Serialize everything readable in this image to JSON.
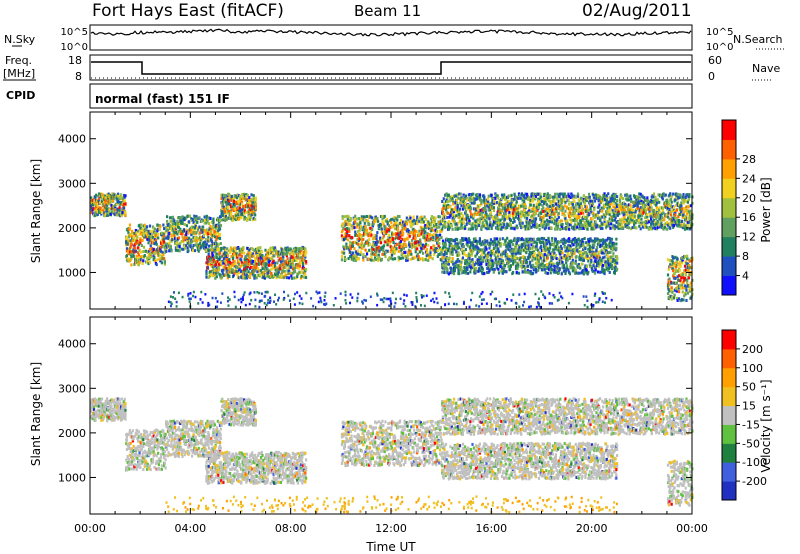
{
  "header": {
    "station": "Fort Hays East (fitACF)",
    "beam": "Beam 11",
    "date": "02/Aug/2011"
  },
  "top_panels": {
    "nsky_label": "N.Sky",
    "nsky_ticks": [
      "10^5",
      "10^0"
    ],
    "nsearch_label": "N.Search",
    "nsearch_ticks": [
      "10^5",
      "10^0"
    ],
    "freq_label": "Freq.",
    "freq_unit": "[MHz]",
    "freq_ticks": [
      "18",
      "8"
    ],
    "nave_label": "Nave",
    "nave_ticks": [
      "60",
      "0"
    ],
    "cpid_label": "CPID",
    "cpid_value": "normal (fast) 151 IF"
  },
  "chart_data": [
    {
      "type": "heatmap",
      "name": "power-panel",
      "ylabel": "Slant Range [km]",
      "xlabel": "",
      "xlim": [
        0,
        24
      ],
      "ylim": [
        180,
        4600
      ],
      "yticks": [
        "1000",
        "2000",
        "3000",
        "4000"
      ],
      "ytick_values": [
        1000,
        2000,
        3000,
        4000
      ],
      "colorbar": {
        "label": "Power [dB]",
        "ticks": [
          "4",
          "8",
          "12",
          "16",
          "20",
          "24",
          "28"
        ],
        "colors": [
          "#1010ff",
          "#2050c0",
          "#208060",
          "#60a060",
          "#a0c040",
          "#f0d020",
          "#ffa000",
          "#ff6000",
          "#ff0000"
        ]
      },
      "echo_regions": [
        {
          "t": [
            0.0,
            1.4
          ],
          "range": [
            2300,
            2800
          ],
          "level": "strong"
        },
        {
          "t": [
            1.4,
            3.0
          ],
          "range": [
            1200,
            2100
          ],
          "level": "strong"
        },
        {
          "t": [
            3.0,
            5.2
          ],
          "range": [
            1500,
            2300
          ],
          "level": "medium"
        },
        {
          "t": [
            5.2,
            6.6
          ],
          "range": [
            2200,
            2800
          ],
          "level": "strong"
        },
        {
          "t": [
            4.6,
            8.6
          ],
          "range": [
            900,
            1600
          ],
          "level": "strong"
        },
        {
          "t": [
            10.0,
            14.0
          ],
          "range": [
            1300,
            2300
          ],
          "level": "strong"
        },
        {
          "t": [
            14.0,
            24.0
          ],
          "range": [
            2000,
            2800
          ],
          "level": "medium"
        },
        {
          "t": [
            14.0,
            21.0
          ],
          "range": [
            1000,
            1800
          ],
          "level": "weak"
        },
        {
          "t": [
            23.0,
            24.0
          ],
          "range": [
            400,
            1400
          ],
          "level": "strong"
        }
      ]
    },
    {
      "type": "heatmap",
      "name": "velocity-panel",
      "ylabel": "Slant Range [km]",
      "xlabel": "Time UT",
      "xlim": [
        0,
        24
      ],
      "ylim": [
        180,
        4600
      ],
      "yticks": [
        "1000",
        "2000",
        "3000",
        "4000"
      ],
      "ytick_values": [
        1000,
        2000,
        3000,
        4000
      ],
      "xticks": [
        "00:00",
        "04:00",
        "08:00",
        "12:00",
        "16:00",
        "20:00",
        "00:00"
      ],
      "xtick_values": [
        0,
        4,
        8,
        12,
        16,
        20,
        24
      ],
      "colorbar": {
        "label": "Velocity [m s⁻¹]",
        "ticks": [
          "200",
          "100",
          "50",
          "15",
          "-15",
          "-50",
          "-100",
          "-200"
        ],
        "colors": [
          "#2030c0",
          "#4060e0",
          "#208040",
          "#60c040",
          "#c0c0c0",
          "#f0c020",
          "#ffa000",
          "#ff6000",
          "#ff0000"
        ]
      }
    }
  ]
}
